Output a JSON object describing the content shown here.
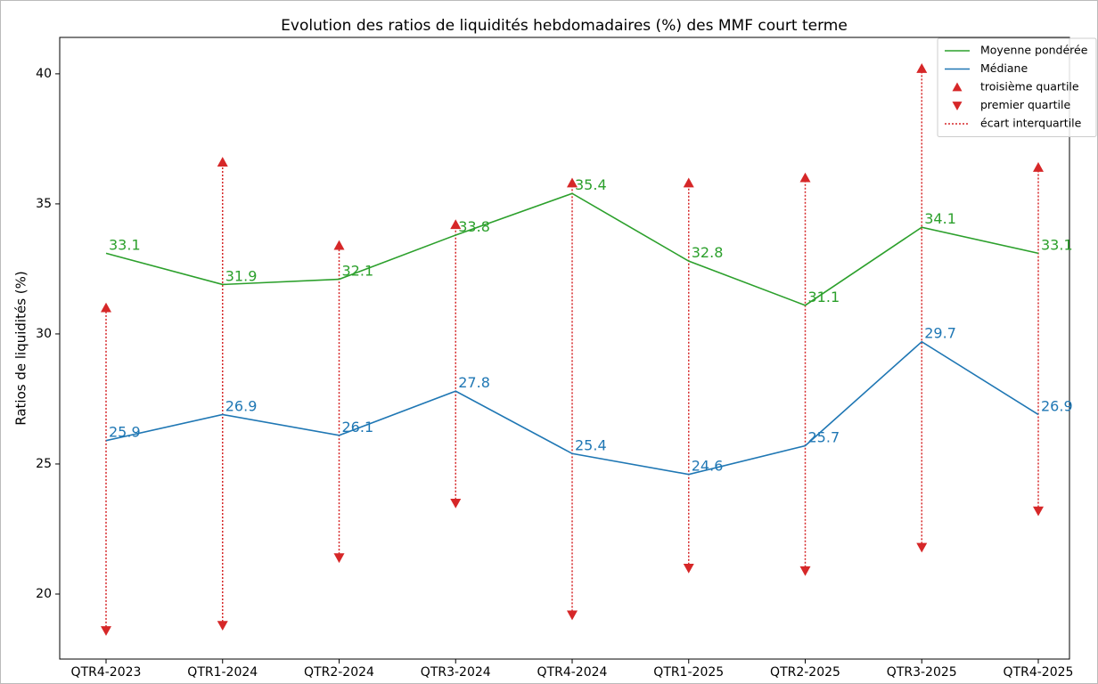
{
  "chart_data": {
    "type": "line",
    "title": "Evolution des ratios de liquidités hebdomadaires (%) des MMF court terme",
    "y_label": "Ratios de liquidités (%)",
    "categories": [
      "QTR4-2023",
      "QTR1-2024",
      "QTR2-2024",
      "QTR3-2024",
      "QTR4-2024",
      "QTR1-2025",
      "QTR2-2025",
      "QTR3-2025",
      "QTR4-2025"
    ],
    "series": [
      {
        "name": "Moyenne pondérée",
        "color": "#2ca02c",
        "kind": "line",
        "data_labels": true,
        "values": [
          33.1,
          31.9,
          32.1,
          33.8,
          35.4,
          32.8,
          31.1,
          34.1,
          33.1
        ]
      },
      {
        "name": "Médiane",
        "color": "#1f77b4",
        "kind": "line",
        "data_labels": true,
        "values": [
          25.9,
          26.9,
          26.1,
          27.8,
          25.4,
          24.6,
          25.7,
          29.7,
          26.9
        ]
      },
      {
        "name": "troisième quartile",
        "color": "#d62728",
        "kind": "triangle-up",
        "values": [
          31.0,
          36.6,
          33.4,
          34.2,
          35.8,
          35.8,
          36.0,
          40.2,
          36.4
        ]
      },
      {
        "name": "premier quartile",
        "color": "#d62728",
        "kind": "triangle-down",
        "values": [
          18.6,
          18.8,
          21.4,
          23.5,
          19.2,
          21.0,
          20.9,
          21.8,
          23.2
        ]
      }
    ],
    "range": {
      "name": "écart interquartile",
      "color": "#d62728",
      "style": "dotted",
      "low_series": 3,
      "high_series": 2
    },
    "ylim": [
      17.5,
      41.4
    ],
    "yticks": [
      20,
      25,
      30,
      35,
      40
    ],
    "grid": false,
    "legend": "upper right"
  }
}
